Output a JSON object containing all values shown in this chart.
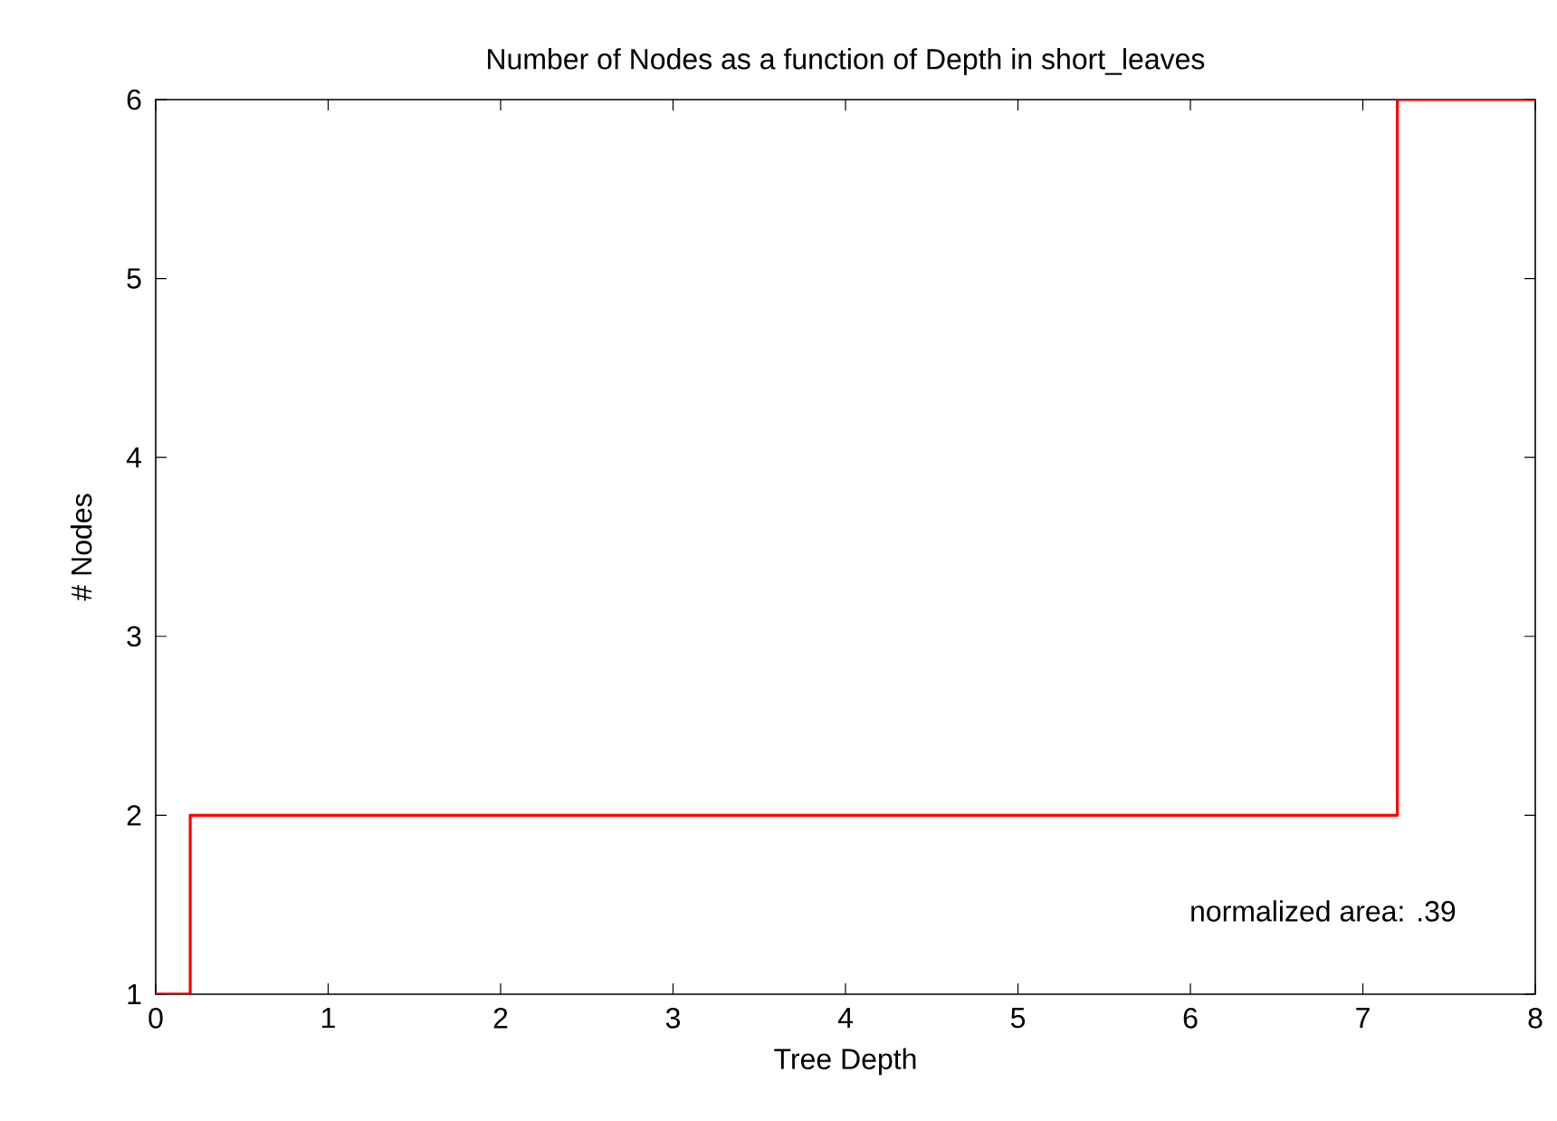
{
  "chart_data": {
    "type": "step",
    "title": "Number of Nodes as a function of Depth in short_leaves",
    "xlabel": "Tree Depth",
    "ylabel": "# Nodes",
    "x": [
      0,
      0.2,
      7.2,
      8
    ],
    "series": [
      {
        "color": "#ff0000",
        "values": [
          1,
          2,
          6,
          6
        ]
      }
    ],
    "xlim": [
      0,
      8
    ],
    "xticks": [
      0,
      1,
      2,
      3,
      4,
      5,
      6,
      7,
      8
    ],
    "ylim": [
      1,
      6
    ],
    "yticks": [
      1,
      2,
      3,
      4,
      5,
      6
    ],
    "grid": false,
    "annotations": [
      "normalized area: .39"
    ]
  }
}
